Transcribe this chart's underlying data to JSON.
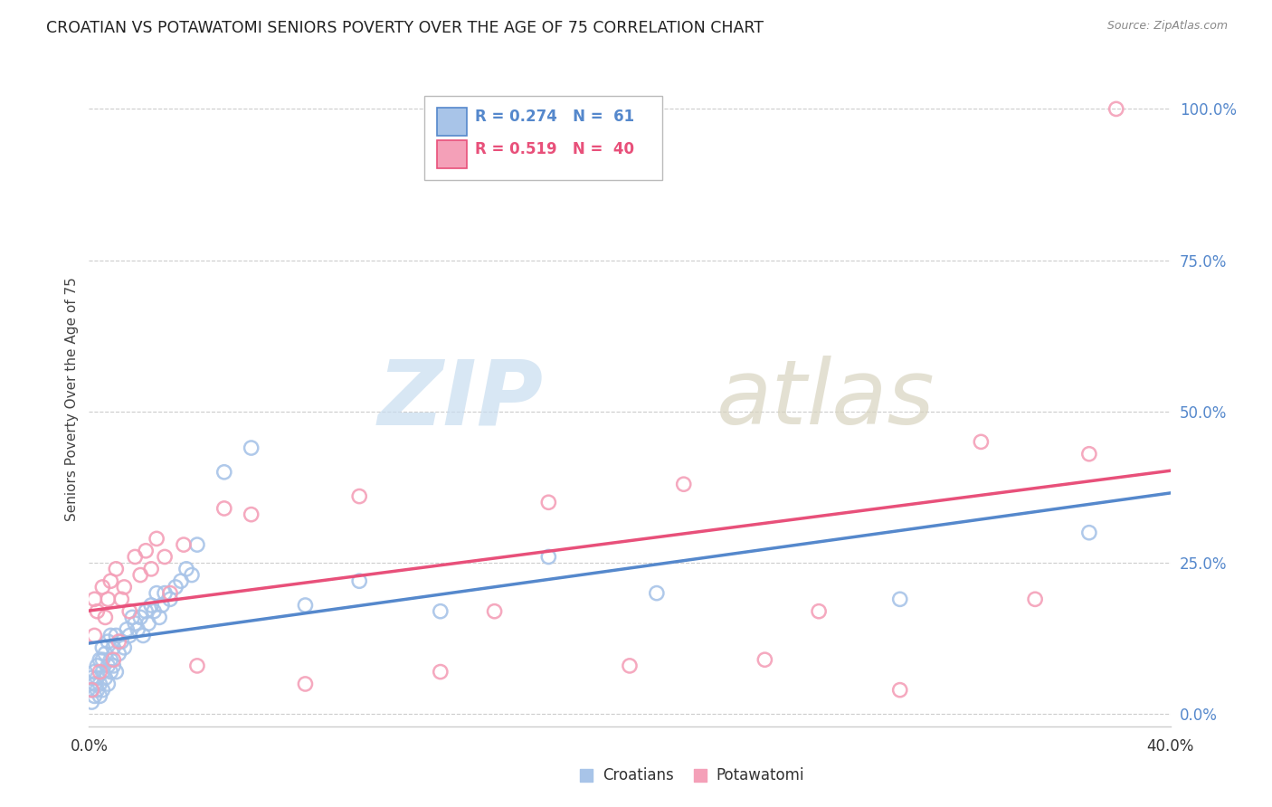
{
  "title": "CROATIAN VS POTAWATOMI SENIORS POVERTY OVER THE AGE OF 75 CORRELATION CHART",
  "source": "Source: ZipAtlas.com",
  "ylabel": "Seniors Poverty Over the Age of 75",
  "right_yticks": [
    "0.0%",
    "25.0%",
    "50.0%",
    "75.0%",
    "100.0%"
  ],
  "right_ytick_vals": [
    0.0,
    0.25,
    0.5,
    0.75,
    1.0
  ],
  "xmin": 0.0,
  "xmax": 0.4,
  "ymin": -0.02,
  "ymax": 1.06,
  "croatian_color": "#a8c4e8",
  "potawatomi_color": "#f4a0b8",
  "croatian_line_color": "#5588cc",
  "potawatomi_line_color": "#e8507a",
  "watermark_zip": "ZIP",
  "watermark_atlas": "atlas",
  "legend_text_1": "R = 0.274   N =  61",
  "legend_text_2": "R = 0.519   N =  40",
  "croatian_x": [
    0.001,
    0.001,
    0.001,
    0.002,
    0.002,
    0.002,
    0.003,
    0.003,
    0.003,
    0.004,
    0.004,
    0.004,
    0.005,
    0.005,
    0.005,
    0.005,
    0.006,
    0.006,
    0.007,
    0.007,
    0.007,
    0.008,
    0.008,
    0.008,
    0.009,
    0.009,
    0.01,
    0.01,
    0.011,
    0.012,
    0.013,
    0.014,
    0.015,
    0.016,
    0.017,
    0.018,
    0.019,
    0.02,
    0.021,
    0.022,
    0.023,
    0.024,
    0.025,
    0.026,
    0.027,
    0.028,
    0.03,
    0.032,
    0.034,
    0.036,
    0.038,
    0.04,
    0.05,
    0.06,
    0.08,
    0.1,
    0.13,
    0.17,
    0.21,
    0.3,
    0.37
  ],
  "croatian_y": [
    0.02,
    0.04,
    0.06,
    0.03,
    0.05,
    0.07,
    0.04,
    0.06,
    0.08,
    0.03,
    0.05,
    0.09,
    0.04,
    0.07,
    0.09,
    0.11,
    0.06,
    0.1,
    0.05,
    0.08,
    0.12,
    0.07,
    0.09,
    0.13,
    0.08,
    0.11,
    0.07,
    0.13,
    0.1,
    0.12,
    0.11,
    0.14,
    0.13,
    0.16,
    0.15,
    0.14,
    0.16,
    0.13,
    0.17,
    0.15,
    0.18,
    0.17,
    0.2,
    0.16,
    0.18,
    0.2,
    0.19,
    0.21,
    0.22,
    0.24,
    0.23,
    0.28,
    0.4,
    0.44,
    0.18,
    0.22,
    0.17,
    0.26,
    0.2,
    0.19,
    0.3
  ],
  "potawatomi_x": [
    0.001,
    0.002,
    0.002,
    0.003,
    0.004,
    0.005,
    0.006,
    0.007,
    0.008,
    0.009,
    0.01,
    0.011,
    0.012,
    0.013,
    0.015,
    0.017,
    0.019,
    0.021,
    0.023,
    0.025,
    0.028,
    0.03,
    0.035,
    0.04,
    0.05,
    0.06,
    0.08,
    0.1,
    0.13,
    0.15,
    0.17,
    0.2,
    0.22,
    0.25,
    0.27,
    0.3,
    0.33,
    0.35,
    0.37,
    0.38
  ],
  "potawatomi_y": [
    0.04,
    0.13,
    0.19,
    0.17,
    0.07,
    0.21,
    0.16,
    0.19,
    0.22,
    0.09,
    0.24,
    0.12,
    0.19,
    0.21,
    0.17,
    0.26,
    0.23,
    0.27,
    0.24,
    0.29,
    0.26,
    0.2,
    0.28,
    0.08,
    0.34,
    0.33,
    0.05,
    0.36,
    0.07,
    0.17,
    0.35,
    0.08,
    0.38,
    0.09,
    0.17,
    0.04,
    0.45,
    0.19,
    0.43,
    1.0
  ]
}
